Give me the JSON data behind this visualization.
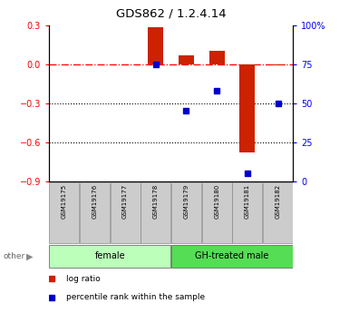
{
  "title": "GDS862 / 1.2.4.14",
  "samples": [
    "GSM19175",
    "GSM19176",
    "GSM19177",
    "GSM19178",
    "GSM19179",
    "GSM19180",
    "GSM19181",
    "GSM19182"
  ],
  "log_ratio": [
    0.0,
    0.0,
    0.0,
    0.28,
    0.07,
    0.1,
    -0.68,
    -0.01
  ],
  "percentile_rank": [
    null,
    null,
    null,
    75,
    45,
    58,
    5,
    50
  ],
  "groups": [
    {
      "label": "female",
      "start": 0,
      "end": 3,
      "color": "#bbffbb"
    },
    {
      "label": "GH-treated male",
      "start": 4,
      "end": 7,
      "color": "#55dd55"
    }
  ],
  "bar_color": "#cc2200",
  "dot_color": "#0000cc",
  "ylim_left": [
    -0.9,
    0.3
  ],
  "ylim_right": [
    0,
    100
  ],
  "yticks_left": [
    0.3,
    0.0,
    -0.3,
    -0.6,
    -0.9
  ],
  "yticks_right": [
    100,
    75,
    50,
    25,
    0
  ],
  "ytick_labels_right": [
    "100%",
    "75",
    "50",
    "25",
    "0"
  ],
  "hline_y": 0.0,
  "dotted_lines": [
    -0.3,
    -0.6
  ],
  "legend_items": [
    "log ratio",
    "percentile rank within the sample"
  ]
}
